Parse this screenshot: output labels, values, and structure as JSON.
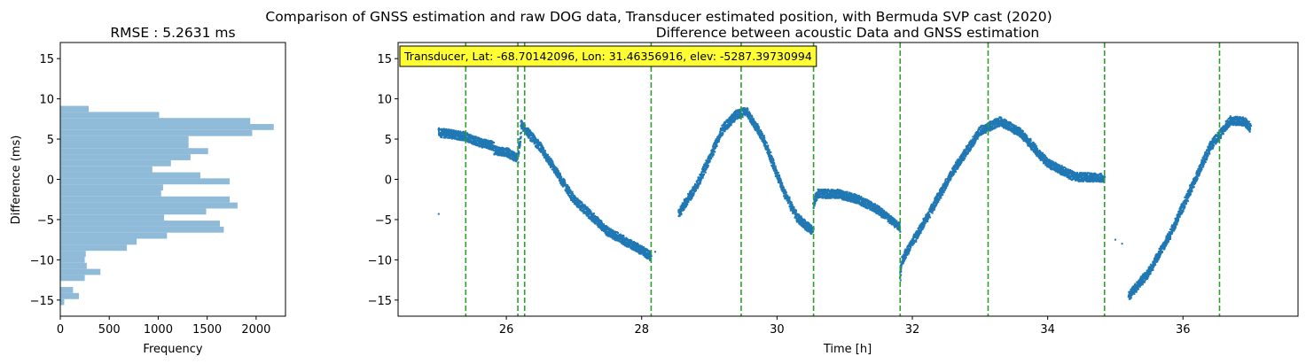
{
  "suptitle": "Comparison of GNSS estimation and raw DOG data, Transducer estimated position, with Bermuda SVP cast (2020)",
  "chart_data": [
    {
      "type": "bar",
      "orientation": "horizontal",
      "title": "RMSE : 5.2631 ms",
      "xlabel": "Frequency",
      "ylabel": "Difference (ms)",
      "xlim": [
        0,
        2300
      ],
      "ylim": [
        -17,
        17
      ],
      "xticks": [
        0,
        500,
        1000,
        1500,
        2000
      ],
      "yticks": [
        -15,
        -10,
        -5,
        0,
        5,
        10,
        15
      ],
      "color": "#8fbbd9",
      "bin_width": 0.75,
      "bins": [
        {
          "y": -15.25,
          "count": 40
        },
        {
          "y": -14.5,
          "count": 190
        },
        {
          "y": -13.75,
          "count": 130
        },
        {
          "y": -12.25,
          "count": 250
        },
        {
          "y": -11.5,
          "count": 410
        },
        {
          "y": -10.75,
          "count": 270
        },
        {
          "y": -10.0,
          "count": 250
        },
        {
          "y": -9.25,
          "count": 260
        },
        {
          "y": -8.5,
          "count": 680
        },
        {
          "y": -7.75,
          "count": 780
        },
        {
          "y": -7.0,
          "count": 1090
        },
        {
          "y": -6.25,
          "count": 1670
        },
        {
          "y": -5.5,
          "count": 1630
        },
        {
          "y": -4.75,
          "count": 1060
        },
        {
          "y": -4.0,
          "count": 1490
        },
        {
          "y": -3.25,
          "count": 1810
        },
        {
          "y": -2.5,
          "count": 1730
        },
        {
          "y": -1.75,
          "count": 1030
        },
        {
          "y": -1.0,
          "count": 1050
        },
        {
          "y": -0.25,
          "count": 1730
        },
        {
          "y": 0.5,
          "count": 1430
        },
        {
          "y": 1.25,
          "count": 940
        },
        {
          "y": 2.0,
          "count": 1130
        },
        {
          "y": 2.75,
          "count": 1330
        },
        {
          "y": 3.5,
          "count": 1510
        },
        {
          "y": 4.25,
          "count": 1310
        },
        {
          "y": 5.0,
          "count": 1310
        },
        {
          "y": 5.75,
          "count": 1960
        },
        {
          "y": 6.5,
          "count": 2180
        },
        {
          "y": 7.25,
          "count": 1940
        },
        {
          "y": 8.0,
          "count": 1010
        },
        {
          "y": 8.75,
          "count": 290
        }
      ]
    },
    {
      "type": "scatter",
      "title": "Difference between acoustic Data and GNSS estimation",
      "xlabel": "Time [h]",
      "ylabel": "",
      "xlim": [
        24.4,
        37.7
      ],
      "ylim": [
        -17,
        17
      ],
      "xticks": [
        26,
        28,
        30,
        32,
        34,
        36
      ],
      "yticks": [
        -15,
        -10,
        -5,
        0,
        5,
        10,
        15
      ],
      "point_color": "#1f77b4",
      "vline_color": "#2ca02c",
      "vlines": [
        25.4,
        26.17,
        26.27,
        28.14,
        29.47,
        30.54,
        31.82,
        33.12,
        34.84,
        36.54
      ],
      "annotation": "Transducer, Lat: -68.70142096, Lon: 31.46356916, elev: -5287.39730994",
      "annotation_bg": "#ffff33",
      "series": [
        {
          "x": [
            25.0,
            25.2,
            25.4,
            25.6,
            25.8,
            25.82
          ],
          "y": [
            5.8,
            5.6,
            5.3,
            4.6,
            4.2,
            4.1
          ]
        },
        {
          "x": [
            25.82,
            26.0,
            26.17,
            26.22
          ],
          "y": [
            3.6,
            3.4,
            2.6,
            5.8
          ]
        },
        {
          "x": [
            26.22,
            26.5,
            27.0,
            27.5,
            28.0,
            28.14
          ],
          "y": [
            6.8,
            4.0,
            -2.5,
            -6.5,
            -8.8,
            -9.6
          ]
        },
        {
          "x": [
            28.55,
            28.8,
            29.0,
            29.2,
            29.4,
            29.55,
            29.8,
            30.1,
            30.3,
            30.54
          ],
          "y": [
            -4.2,
            -1.0,
            2.5,
            6.3,
            8.0,
            8.5,
            5.0,
            -1.5,
            -4.8,
            -6.5
          ]
        },
        {
          "x": [
            30.54,
            30.6,
            30.9,
            31.2,
            31.5,
            31.82
          ],
          "y": [
            -3.2,
            -1.8,
            -1.8,
            -2.5,
            -3.8,
            -6.0
          ]
        },
        {
          "x": [
            31.82,
            31.85,
            32.2,
            32.6,
            33.0,
            33.3,
            33.6,
            34.0,
            34.4,
            34.84
          ],
          "y": [
            -12.0,
            -10.0,
            -5.0,
            1.0,
            6.0,
            7.2,
            5.8,
            2.0,
            0.3,
            0.2
          ]
        },
        {
          "x": [
            35.2,
            35.5,
            35.8,
            36.1,
            36.4,
            36.7,
            36.9,
            37.0
          ],
          "y": [
            -14.5,
            -11.5,
            -7.0,
            -1.5,
            4.0,
            7.3,
            7.2,
            6.4
          ]
        }
      ],
      "stray_points": [
        {
          "x": 25.0,
          "y": -4.3
        },
        {
          "x": 28.2,
          "y": -9.0
        },
        {
          "x": 35.0,
          "y": -7.5
        },
        {
          "x": 35.1,
          "y": -8.0
        }
      ]
    }
  ]
}
